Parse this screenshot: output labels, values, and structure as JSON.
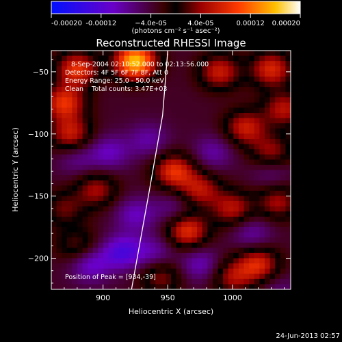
{
  "chart_data": {
    "type": "heatmap",
    "title": "Reconstructed RHESSI Image",
    "xlabel": "Heliocentric X (arcsec)",
    "ylabel": "Heliocentric Y (arcsec)",
    "xlim": [
      860,
      1045
    ],
    "ylim": [
      -225,
      -33
    ],
    "x_ticks": [
      900,
      950,
      1000
    ],
    "y_ticks": [
      -50,
      -100,
      -150,
      -200
    ],
    "annotations": [
      "8-Sep-2004 02:10:52.000 to 02:13:56.000",
      "Detectors: 4F 5F 6F 7F 8F, Att 0",
      "Energy Range: 25.0 - 50.0 keV",
      "Clean    Total counts: 3.47E+03"
    ],
    "peak_label": "Position of Peak = [934,-39]",
    "peak": [
      934,
      -39
    ],
    "limb_curve": [
      [
        922,
        -225
      ],
      [
        935,
        -150
      ],
      [
        946,
        -85
      ],
      [
        950,
        -33
      ]
    ],
    "colorbar": {
      "range": [
        -0.0002,
        0.0002
      ],
      "tick_values": [
        -0.0002,
        -0.00012,
        -4e-05,
        4e-05,
        0.00012,
        0.0002
      ],
      "tick_labels": [
        "-0.00020",
        "-0.00012",
        "−4.0e-05",
        "4.0e-05",
        "0.00012",
        "0.00020"
      ],
      "unit_label": "(photons cm⁻² s⁻¹ asec⁻²)"
    },
    "hotspots": [
      {
        "x": 925,
        "y": -42,
        "value": 0.0002
      },
      {
        "x": 880,
        "y": -48,
        "value": 0.00012
      },
      {
        "x": 990,
        "y": -50,
        "value": 0.0001
      },
      {
        "x": 1030,
        "y": -48,
        "value": 0.00011
      },
      {
        "x": 1040,
        "y": -80,
        "value": 9e-05
      },
      {
        "x": 870,
        "y": -75,
        "value": 0.00012
      },
      {
        "x": 875,
        "y": -100,
        "value": 0.0001
      },
      {
        "x": 1010,
        "y": -95,
        "value": 0.0001
      },
      {
        "x": 1030,
        "y": -115,
        "value": 8e-05
      },
      {
        "x": 955,
        "y": -130,
        "value": 0.00012
      },
      {
        "x": 975,
        "y": -145,
        "value": 9e-05
      },
      {
        "x": 895,
        "y": -145,
        "value": 8e-05
      },
      {
        "x": 1000,
        "y": -160,
        "value": 9e-05
      },
      {
        "x": 1035,
        "y": -155,
        "value": 8e-05
      },
      {
        "x": 870,
        "y": -160,
        "value": 6e-05
      },
      {
        "x": 965,
        "y": -178,
        "value": 0.00012
      },
      {
        "x": 1020,
        "y": -205,
        "value": 0.00011
      },
      {
        "x": 880,
        "y": -190,
        "value": 6e-05
      },
      {
        "x": 945,
        "y": -215,
        "value": 7e-05
      },
      {
        "x": 1000,
        "y": -215,
        "value": 8e-05
      },
      {
        "x": 880,
        "y": -120,
        "value": -4e-05
      },
      {
        "x": 905,
        "y": -115,
        "value": -6e-05
      },
      {
        "x": 935,
        "y": -105,
        "value": -5e-05
      },
      {
        "x": 985,
        "y": -115,
        "value": -5e-05
      },
      {
        "x": 925,
        "y": -165,
        "value": -6e-05
      },
      {
        "x": 955,
        "y": -160,
        "value": -4e-05
      },
      {
        "x": 1015,
        "y": -180,
        "value": -5e-05
      },
      {
        "x": 915,
        "y": -195,
        "value": -9e-05
      },
      {
        "x": 890,
        "y": -205,
        "value": -7e-05
      },
      {
        "x": 940,
        "y": -195,
        "value": -5e-05
      },
      {
        "x": 975,
        "y": -205,
        "value": -6e-05
      },
      {
        "x": 1030,
        "y": -130,
        "value": -4e-05
      },
      {
        "x": 1035,
        "y": -225,
        "value": -3e-05
      }
    ]
  },
  "footer": {
    "date": "24-Jun-2013 02:57"
  }
}
